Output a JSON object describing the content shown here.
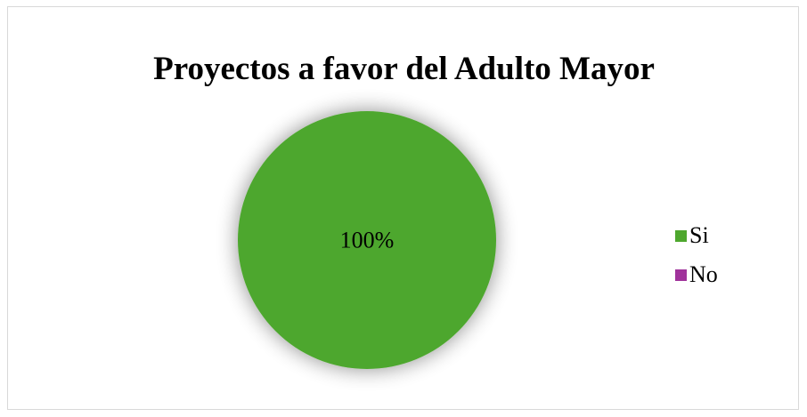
{
  "chart_data": {
    "type": "pie",
    "title": "Proyectos a favor del Adulto Mayor",
    "categories": [
      "Si",
      "No"
    ],
    "values": [
      100,
      0
    ],
    "data_labels": [
      "100%"
    ],
    "colors": [
      "#4ea72e",
      "#a0339b"
    ],
    "legend": "right"
  }
}
